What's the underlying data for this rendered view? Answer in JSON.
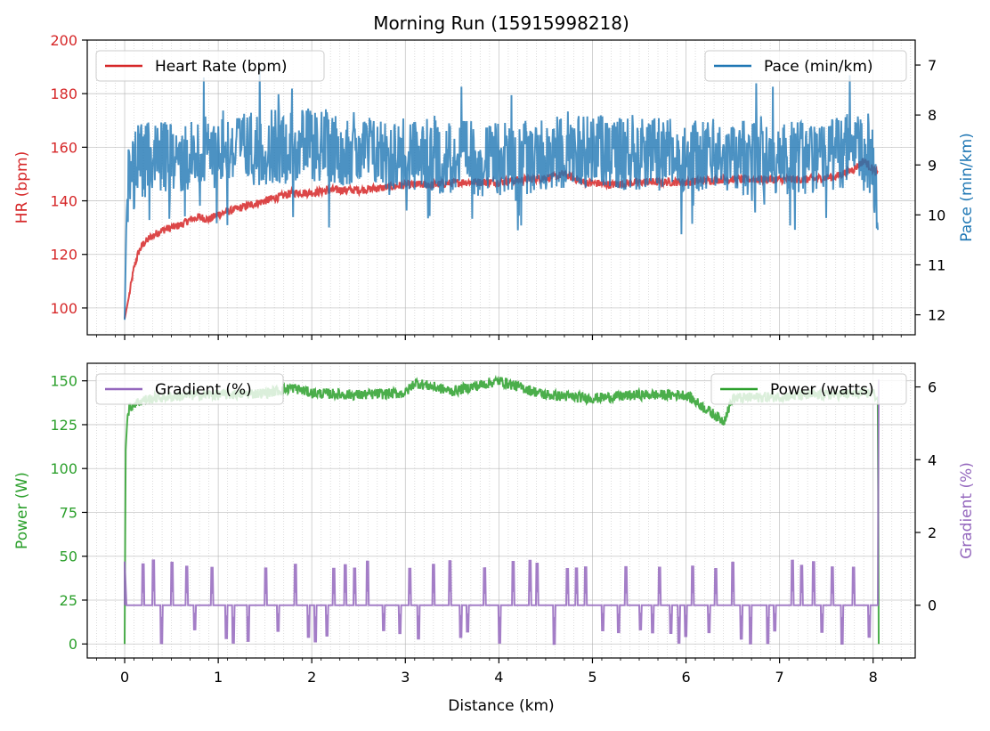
{
  "figure": {
    "title": "Morning Run (15915998218)",
    "xlabel": "Distance (km)"
  },
  "colors": {
    "hr": "#d62728",
    "pace": "#1f77b4",
    "power": "#2ca02c",
    "gradient": "#9467bd",
    "grid": "#b0b0b0"
  },
  "chart_data": [
    {
      "type": "line",
      "x_range": [
        -0.4,
        8.45
      ],
      "xticks": [
        0,
        1,
        2,
        3,
        4,
        5,
        6,
        7,
        8
      ],
      "xlabel": "",
      "grid": true,
      "left_axis": {
        "ylabel": "HR (bpm)",
        "ylim": [
          90,
          200
        ],
        "ticks": [
          100,
          120,
          140,
          160,
          180,
          200
        ]
      },
      "right_axis": {
        "ylabel": "Pace (min/km)",
        "ylim": [
          12.4,
          6.5
        ],
        "inverted": true,
        "ticks": [
          7,
          8,
          9,
          10,
          11,
          12
        ]
      },
      "series": [
        {
          "name": "Heart Rate (bpm)",
          "axis": "left",
          "legend_loc": "upper left",
          "x": [
            0,
            0.05,
            0.1,
            0.15,
            0.2,
            0.3,
            0.4,
            0.5,
            0.6,
            0.7,
            0.8,
            0.9,
            1.0,
            1.2,
            1.4,
            1.6,
            1.8,
            2.0,
            2.2,
            2.5,
            2.8,
            3.0,
            3.3,
            3.6,
            4.0,
            4.3,
            4.6,
            4.7,
            4.9,
            5.2,
            5.5,
            5.8,
            6.0,
            6.4,
            6.8,
            7.0,
            7.3,
            7.6,
            7.8,
            7.9,
            8.05
          ],
          "values": [
            96,
            105,
            115,
            121,
            124,
            127,
            129,
            130,
            131,
            133,
            134,
            133,
            135,
            137,
            139,
            141,
            143,
            143,
            144,
            144,
            145,
            146,
            146,
            147,
            147,
            148,
            149,
            150,
            147,
            146,
            147,
            147,
            147,
            148,
            148,
            148,
            148,
            149,
            152,
            155,
            150
          ]
        },
        {
          "name": "Pace (min/km)",
          "axis": "right",
          "legend_loc": "upper right",
          "x": [
            0,
            0.02,
            0.05,
            0.1,
            0.15,
            0.2,
            0.3,
            0.5,
            1.0,
            2.0,
            3.0,
            4.0,
            5.0,
            6.0,
            7.0,
            7.8,
            8.0,
            8.05
          ],
          "values": [
            12.1,
            10.0,
            8.9,
            9.2,
            8.7,
            9.0,
            8.8,
            8.9,
            8.7,
            8.6,
            8.8,
            8.9,
            8.7,
            8.8,
            8.9,
            8.7,
            9.0,
            10.3
          ]
        }
      ]
    },
    {
      "type": "line",
      "x_range": [
        -0.4,
        8.45
      ],
      "xticks": [
        0,
        1,
        2,
        3,
        4,
        5,
        6,
        7,
        8
      ],
      "xlabel": "Distance (km)",
      "grid": true,
      "left_axis": {
        "ylabel": "Power (W)",
        "ylim": [
          -8,
          160
        ],
        "ticks": [
          0,
          25,
          50,
          75,
          100,
          125,
          150
        ]
      },
      "right_axis": {
        "ylabel": "Gradient (%)",
        "ylim": [
          -1.45,
          6.65
        ],
        "ticks": [
          0,
          2,
          4,
          6
        ]
      },
      "series": [
        {
          "name": "Power (watts)",
          "axis": "left",
          "legend_loc": "upper right",
          "x": [
            0,
            0.01,
            0.03,
            0.05,
            0.1,
            0.2,
            0.3,
            0.5,
            0.8,
            1.0,
            1.5,
            1.8,
            2.0,
            2.5,
            3.0,
            3.1,
            3.5,
            4.0,
            4.5,
            5.0,
            5.5,
            6.0,
            6.4,
            6.5,
            7.0,
            7.5,
            8.0,
            8.05,
            8.06
          ],
          "values": [
            0,
            110,
            130,
            134,
            137,
            139,
            140,
            141,
            142,
            142,
            143,
            146,
            143,
            142,
            143,
            149,
            144,
            150,
            142,
            140,
            142,
            142,
            127,
            140,
            141,
            142,
            143,
            140,
            0
          ]
        },
        {
          "name": "Gradient (%)",
          "axis": "right",
          "legend_loc": "upper left",
          "baseline": 0,
          "spike_max": 1.2,
          "spike_min": -1.1,
          "end_spike": 6.2
        }
      ]
    }
  ]
}
